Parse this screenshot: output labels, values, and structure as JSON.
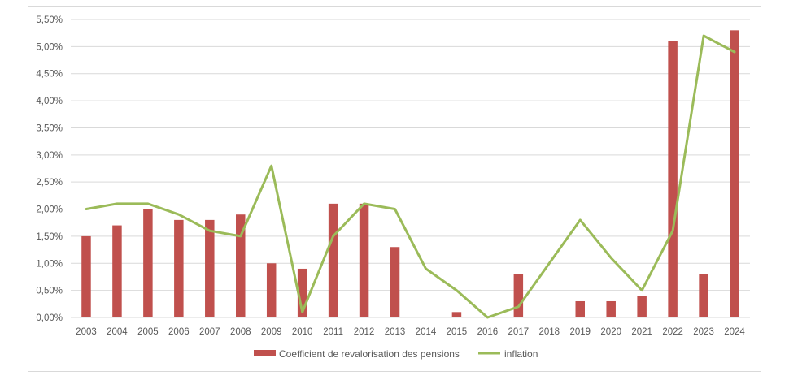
{
  "chart_data": {
    "type": "bar",
    "title": "",
    "xlabel": "",
    "ylabel": "",
    "categories": [
      "2003",
      "2004",
      "2005",
      "2006",
      "2007",
      "2008",
      "2009",
      "2010",
      "2011",
      "2012",
      "2013",
      "2014",
      "2015",
      "2016",
      "2017",
      "2018",
      "2019",
      "2020",
      "2021",
      "2022",
      "2023",
      "2024"
    ],
    "ylim": [
      0,
      5.5
    ],
    "yticks": [
      "0,00%",
      "0,50%",
      "1,00%",
      "1,50%",
      "2,00%",
      "2,50%",
      "3,00%",
      "3,50%",
      "4,00%",
      "4,50%",
      "5,00%",
      "5,50%"
    ],
    "grid": true,
    "legend_position": "bottom",
    "series": [
      {
        "name": "Coefficient de revalorisation des pensions",
        "type": "bar",
        "color": "#c0504d",
        "values": [
          1.5,
          1.7,
          2.0,
          1.8,
          1.8,
          1.9,
          1.0,
          0.9,
          2.1,
          2.1,
          1.3,
          0,
          0.1,
          0,
          0.8,
          0,
          0.3,
          0.3,
          0.4,
          5.1,
          0.8,
          5.3
        ]
      },
      {
        "name": "inflation",
        "type": "line",
        "color": "#9bbb59",
        "values": [
          2.0,
          2.1,
          2.1,
          1.9,
          1.6,
          1.5,
          2.8,
          0.1,
          1.5,
          2.1,
          2.0,
          0.9,
          0.5,
          0.0,
          0.2,
          1.0,
          1.8,
          1.1,
          0.5,
          1.6,
          5.2,
          4.9
        ]
      }
    ]
  }
}
